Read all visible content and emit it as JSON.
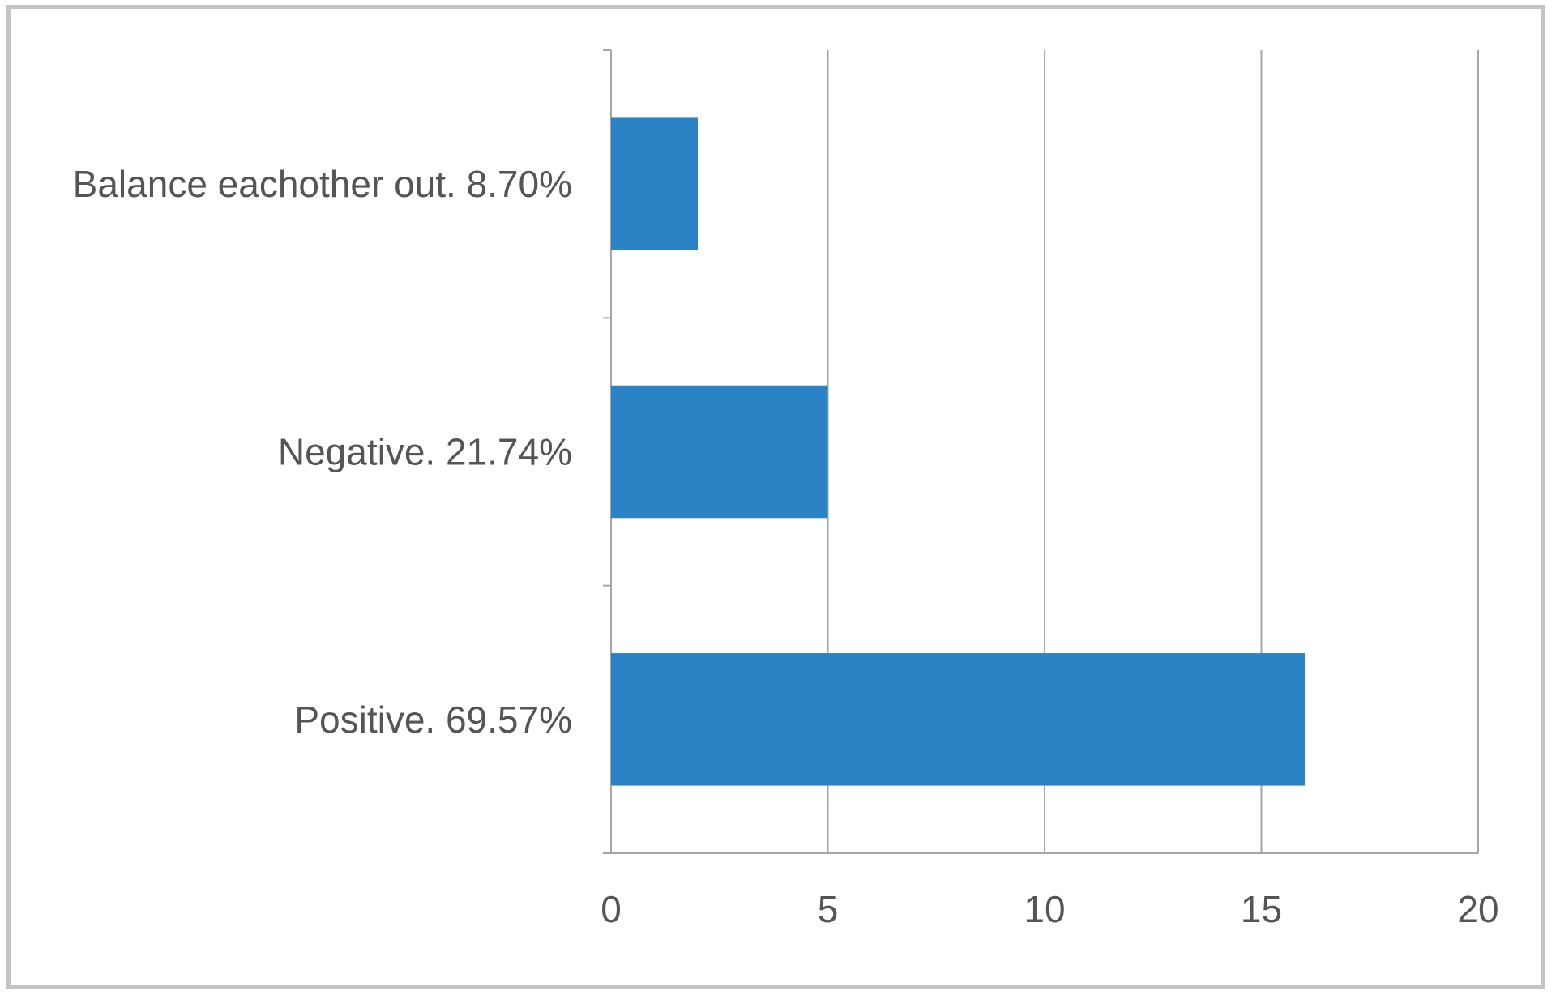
{
  "chart_data": {
    "type": "bar",
    "orientation": "horizontal",
    "categories": [
      "Balance eachother out. 8.70%",
      "Negative. 21.74%",
      "Positive. 69.57%"
    ],
    "values": [
      2,
      5,
      16
    ],
    "xlim": [
      0,
      20
    ],
    "x_ticks": [
      "0",
      "5",
      "10",
      "15",
      "20"
    ],
    "title": "",
    "xlabel": "",
    "ylabel": "",
    "grid": "vertical",
    "legend": "none",
    "bar_color": "#2a83c4",
    "grid_color": "#a6a6a6",
    "frame_color": "#c4c4c4"
  }
}
